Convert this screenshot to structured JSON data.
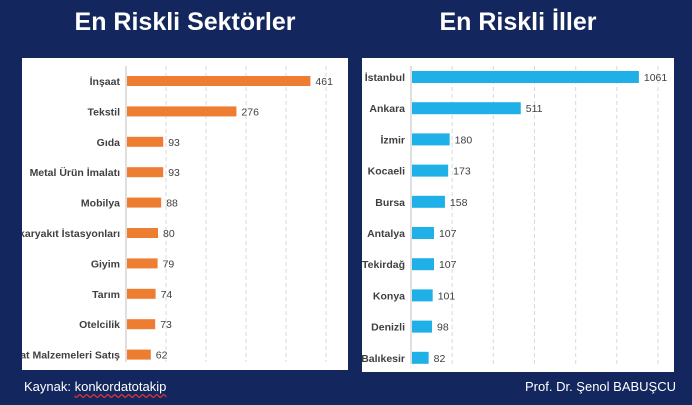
{
  "footer": {
    "source_label": "Kaynak: ",
    "source_value": "konkordatotakip",
    "author": "Prof. Dr. Şenol BABUŞCU"
  },
  "chart_data": [
    {
      "type": "bar",
      "orientation": "horizontal",
      "title": "En Riskli Sektörler",
      "color": "#ed7d31",
      "categories": [
        "İnşaat",
        "Tekstil",
        "Gıda",
        "Metal Ürün İmalatı",
        "Mobilya",
        "Akaryakıt İstasyonları",
        "Giyim",
        "Tarım",
        "Otelcilik",
        "İnşaat Malzemeleri Satış"
      ],
      "values": [
        461,
        276,
        93,
        93,
        88,
        80,
        79,
        74,
        73,
        62
      ],
      "xlim": [
        0,
        500
      ],
      "grid": "vertical-dashed"
    },
    {
      "type": "bar",
      "orientation": "horizontal",
      "title": "En Riskli İller",
      "color": "#1fb0e8",
      "categories": [
        "İstanbul",
        "Ankara",
        "İzmir",
        "Kocaeli",
        "Bursa",
        "Antalya",
        "Tekirdağ",
        "Konya",
        "Denizli",
        "Balıkesir"
      ],
      "values": [
        1061,
        511,
        180,
        173,
        158,
        107,
        107,
        101,
        98,
        82
      ],
      "xlim": [
        0,
        1150
      ],
      "grid": "vertical-dashed"
    }
  ]
}
